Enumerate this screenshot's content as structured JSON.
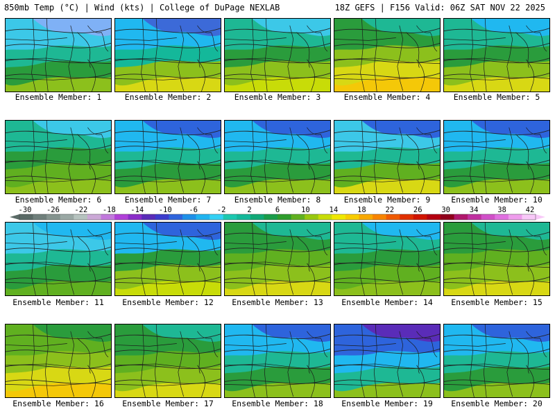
{
  "header": {
    "left_title": "850mb Temp (°C) | Wind (kts) | College of DuPage NEXLAB",
    "right_title": "18Z GEFS | F156 Valid: 06Z SAT NOV 22 2025"
  },
  "colorbar": {
    "ticks": [
      "-30",
      "-26",
      "-22",
      "-18",
      "-14",
      "-10",
      "-6",
      "-2",
      "2",
      "6",
      "10",
      "14",
      "18",
      "22",
      "26",
      "30",
      "34",
      "38",
      "42"
    ],
    "colors": [
      "#5a6a66",
      "#6f7f7b",
      "#85948f",
      "#9aa8a4",
      "#b6c3bf",
      "#cba8d6",
      "#c178dc",
      "#b040d8",
      "#8a2cc8",
      "#5a2cb8",
      "#3c3ccc",
      "#2e64dc",
      "#1e90e8",
      "#20b4f0",
      "#34d0f4",
      "#1cc8b0",
      "#14b89a",
      "#10a876",
      "#1a9c4a",
      "#2e9c2c",
      "#60b020",
      "#98c810",
      "#c8dc08",
      "#f0e800",
      "#f8cc00",
      "#f8a800",
      "#f88400",
      "#f05a00",
      "#e03000",
      "#d01400",
      "#b40010",
      "#90001c",
      "#b0186c",
      "#c030a0",
      "#d050c8",
      "#e070e0",
      "#ee9cec",
      "#f8c8f8"
    ]
  },
  "panels": [
    {
      "label": "Ensemble Member: 1"
    },
    {
      "label": "Ensemble Member: 2"
    },
    {
      "label": "Ensemble Member: 3"
    },
    {
      "label": "Ensemble Member: 4"
    },
    {
      "label": "Ensemble Member: 5"
    },
    {
      "label": "Ensemble Member: 6"
    },
    {
      "label": "Ensemble Member: 7"
    },
    {
      "label": "Ensemble Member: 8"
    },
    {
      "label": "Ensemble Member: 9"
    },
    {
      "label": "Ensemble Member: 10"
    },
    {
      "label": "Ensemble Member: 11"
    },
    {
      "label": "Ensemble Member: 12"
    },
    {
      "label": "Ensemble Member: 13"
    },
    {
      "label": "Ensemble Member: 14"
    },
    {
      "label": "Ensemble Member: 15"
    },
    {
      "label": "Ensemble Member: 16"
    },
    {
      "label": "Ensemble Member: 17"
    },
    {
      "label": "Ensemble Member: 18"
    },
    {
      "label": "Ensemble Member: 19"
    },
    {
      "label": "Ensemble Member: 20"
    }
  ]
}
